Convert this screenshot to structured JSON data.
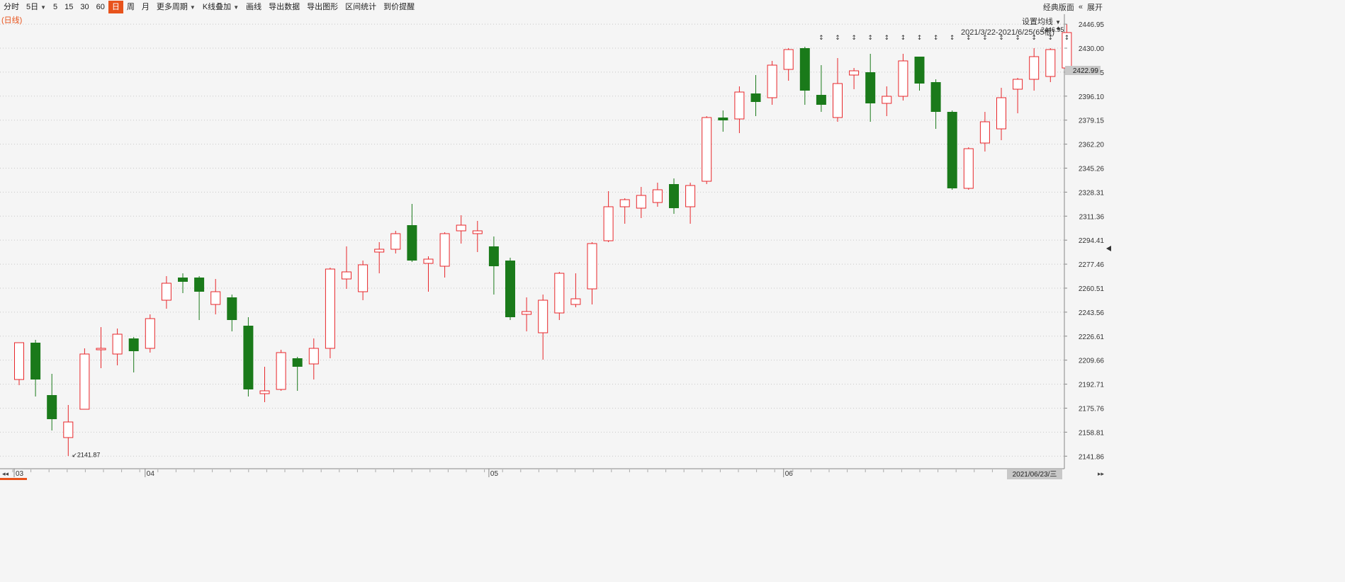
{
  "toolbar": {
    "items": [
      "分时",
      "5日",
      "5",
      "15",
      "30",
      "60",
      "日",
      "周",
      "月",
      "更多周期",
      "K线叠加",
      "画线",
      "导出数据",
      "导出图形",
      "区间统计",
      "到价提醒"
    ],
    "active": "日",
    "right": [
      "经典版面",
      "展开"
    ]
  },
  "period_tag": "(日线)",
  "ma_setting": "设置均线",
  "range_label": "2021/3/22-2021/6/25(65根)",
  "current_price_tag": "2422.99",
  "date_tag": "2021/06/23/三",
  "colors": {
    "up": "#e8262a",
    "down": "#1a7a1a",
    "accent": "#e8531c"
  },
  "chart_data": {
    "type": "candlestick",
    "ylim": [
      2133,
      2454
    ],
    "y_ticks": [
      2141.86,
      2158.81,
      2175.76,
      2192.71,
      2209.66,
      2226.61,
      2243.56,
      2260.51,
      2277.46,
      2294.41,
      2311.36,
      2328.31,
      2345.26,
      2362.2,
      2379.15,
      2396.1,
      2413.05,
      2430.0,
      2446.95
    ],
    "x_month_labels": [
      {
        "label": "03",
        "index": 0
      },
      {
        "label": "04",
        "index": 8
      },
      {
        "label": "05",
        "index": 29
      },
      {
        "label": "06",
        "index": 47
      }
    ],
    "high_annotation": {
      "value": "2446.95",
      "index": 64
    },
    "low_annotation": {
      "value": "2141.87",
      "index": 3
    },
    "markers_from_index": 49,
    "candles": [
      {
        "o": 2196,
        "c": 2222,
        "h": 2222,
        "l": 2192
      },
      {
        "o": 2222,
        "c": 2196,
        "h": 2224,
        "l": 2184
      },
      {
        "o": 2185,
        "c": 2168,
        "h": 2200,
        "l": 2160
      },
      {
        "o": 2155,
        "c": 2166,
        "h": 2178,
        "l": 2142
      },
      {
        "o": 2175,
        "c": 2214,
        "h": 2218,
        "l": 2175
      },
      {
        "o": 2218,
        "c": 2218,
        "h": 2233,
        "l": 2204
      },
      {
        "o": 2214,
        "c": 2228,
        "h": 2232,
        "l": 2206
      },
      {
        "o": 2225,
        "c": 2216,
        "h": 2226,
        "l": 2201
      },
      {
        "o": 2218,
        "c": 2239,
        "h": 2242,
        "l": 2215
      },
      {
        "o": 2252,
        "c": 2264,
        "h": 2269,
        "l": 2246
      },
      {
        "o": 2268,
        "c": 2265,
        "h": 2271,
        "l": 2257
      },
      {
        "o": 2268,
        "c": 2258,
        "h": 2269,
        "l": 2238
      },
      {
        "o": 2249,
        "c": 2258,
        "h": 2267,
        "l": 2242
      },
      {
        "o": 2254,
        "c": 2238,
        "h": 2256,
        "l": 2230
      },
      {
        "o": 2234,
        "c": 2189,
        "h": 2240,
        "l": 2184
      },
      {
        "o": 2186,
        "c": 2188,
        "h": 2205,
        "l": 2180
      },
      {
        "o": 2189,
        "c": 2215,
        "h": 2217,
        "l": 2188
      },
      {
        "o": 2211,
        "c": 2205,
        "h": 2212,
        "l": 2188
      },
      {
        "o": 2207,
        "c": 2218,
        "h": 2225,
        "l": 2196
      },
      {
        "o": 2218,
        "c": 2274,
        "h": 2275,
        "l": 2211
      },
      {
        "o": 2267,
        "c": 2272,
        "h": 2290,
        "l": 2260
      },
      {
        "o": 2258,
        "c": 2277,
        "h": 2280,
        "l": 2252
      },
      {
        "o": 2286,
        "c": 2288,
        "h": 2293,
        "l": 2271
      },
      {
        "o": 2288,
        "c": 2299,
        "h": 2301,
        "l": 2285
      },
      {
        "o": 2305,
        "c": 2280,
        "h": 2320,
        "l": 2279
      },
      {
        "o": 2278,
        "c": 2281,
        "h": 2283,
        "l": 2258
      },
      {
        "o": 2276,
        "c": 2299,
        "h": 2300,
        "l": 2268
      },
      {
        "o": 2301,
        "c": 2305,
        "h": 2312,
        "l": 2292
      },
      {
        "o": 2299,
        "c": 2301,
        "h": 2308,
        "l": 2286
      },
      {
        "o": 2290,
        "c": 2276,
        "h": 2297,
        "l": 2256
      },
      {
        "o": 2280,
        "c": 2240,
        "h": 2282,
        "l": 2238
      },
      {
        "o": 2242,
        "c": 2244,
        "h": 2254,
        "l": 2230
      },
      {
        "o": 2229,
        "c": 2252,
        "h": 2256,
        "l": 2210
      },
      {
        "o": 2243,
        "c": 2271,
        "h": 2272,
        "l": 2238
      },
      {
        "o": 2249,
        "c": 2253,
        "h": 2271,
        "l": 2247
      },
      {
        "o": 2260,
        "c": 2292,
        "h": 2293,
        "l": 2249
      },
      {
        "o": 2294,
        "c": 2318,
        "h": 2329,
        "l": 2293
      },
      {
        "o": 2318,
        "c": 2323,
        "h": 2324,
        "l": 2306
      },
      {
        "o": 2317,
        "c": 2326,
        "h": 2332,
        "l": 2310
      },
      {
        "o": 2321,
        "c": 2330,
        "h": 2335,
        "l": 2318
      },
      {
        "o": 2334,
        "c": 2317,
        "h": 2338,
        "l": 2313
      },
      {
        "o": 2318,
        "c": 2333,
        "h": 2335,
        "l": 2306
      },
      {
        "o": 2336,
        "c": 2381,
        "h": 2382,
        "l": 2334
      },
      {
        "o": 2381,
        "c": 2379,
        "h": 2386,
        "l": 2371
      },
      {
        "o": 2380,
        "c": 2399,
        "h": 2403,
        "l": 2370
      },
      {
        "o": 2398,
        "c": 2392,
        "h": 2411,
        "l": 2382
      },
      {
        "o": 2395,
        "c": 2418,
        "h": 2421,
        "l": 2390
      },
      {
        "o": 2415,
        "c": 2429,
        "h": 2430,
        "l": 2407
      },
      {
        "o": 2430,
        "c": 2400,
        "h": 2431,
        "l": 2390
      },
      {
        "o": 2397,
        "c": 2390,
        "h": 2418,
        "l": 2385
      },
      {
        "o": 2381,
        "c": 2405,
        "h": 2423,
        "l": 2378
      },
      {
        "o": 2411,
        "c": 2414,
        "h": 2416,
        "l": 2401
      },
      {
        "o": 2413,
        "c": 2391,
        "h": 2426,
        "l": 2378
      },
      {
        "o": 2391,
        "c": 2396,
        "h": 2403,
        "l": 2382
      },
      {
        "o": 2396,
        "c": 2421,
        "h": 2426,
        "l": 2393
      },
      {
        "o": 2424,
        "c": 2405,
        "h": 2424,
        "l": 2400
      },
      {
        "o": 2406,
        "c": 2385,
        "h": 2408,
        "l": 2373
      },
      {
        "o": 2385,
        "c": 2331,
        "h": 2386,
        "l": 2330
      },
      {
        "o": 2331,
        "c": 2359,
        "h": 2360,
        "l": 2330
      },
      {
        "o": 2363,
        "c": 2378,
        "h": 2385,
        "l": 2357
      },
      {
        "o": 2373,
        "c": 2395,
        "h": 2402,
        "l": 2365
      },
      {
        "o": 2401,
        "c": 2408,
        "h": 2409,
        "l": 2384
      },
      {
        "o": 2408,
        "c": 2424,
        "h": 2430,
        "l": 2400
      },
      {
        "o": 2410,
        "c": 2429,
        "h": 2430,
        "l": 2406
      },
      {
        "o": 2416,
        "c": 2441,
        "h": 2446.95,
        "l": 2415
      }
    ]
  }
}
